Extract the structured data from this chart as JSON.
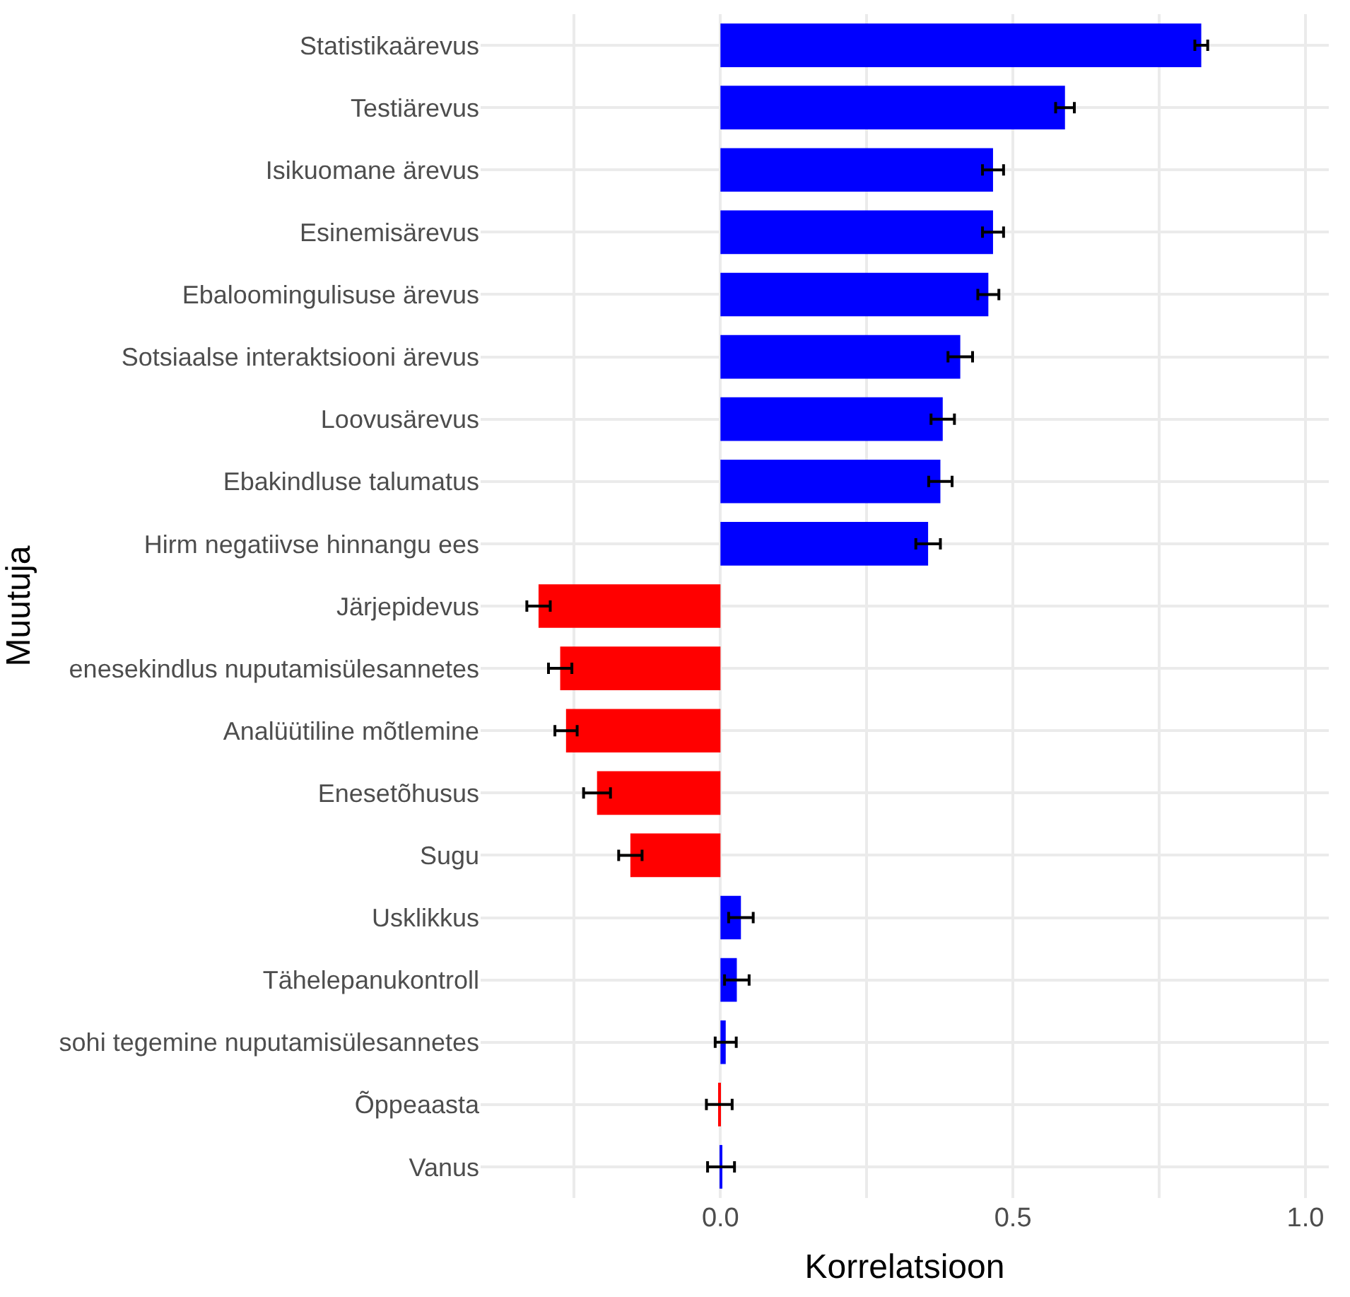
{
  "chart_data": {
    "type": "bar",
    "orientation": "horizontal",
    "xlabel": "Korrelatsioon",
    "ylabel": "Muutuja",
    "categories": [
      "Statistikaärevus",
      "Testiärevus",
      "Isikuomane ärevus",
      "Esinemisärevus",
      "Ebaloomingulisuse ärevus",
      "Sotsiaalse interaktsiooni ärevus",
      "Loovusärevus",
      "Ebakindluse talumatus",
      "Hirm negatiivse hinnangu ees",
      "Järjepidevus",
      "enesekindlus nuputamisülesannetes",
      "Analüütiline mõtlemine",
      "Enesetõhusus",
      "Sugu",
      "Usklikkus",
      "Tähelepanukontroll",
      "sohi tegemine nuputamisülesannetes",
      "Õppeaasta",
      "Vanus"
    ],
    "values": [
      0.822,
      0.589,
      0.466,
      0.466,
      0.458,
      0.41,
      0.38,
      0.376,
      0.355,
      -0.311,
      -0.274,
      -0.264,
      -0.211,
      -0.154,
      0.035,
      0.028,
      0.009,
      -0.002,
      0.001
    ],
    "errors": [
      0.011,
      0.016,
      0.018,
      0.018,
      0.018,
      0.021,
      0.02,
      0.02,
      0.021,
      0.02,
      0.02,
      0.019,
      0.023,
      0.02,
      0.021,
      0.021,
      0.018,
      0.022,
      0.023
    ],
    "colors": [
      "#0000ff",
      "#0000ff",
      "#0000ff",
      "#0000ff",
      "#0000ff",
      "#0000ff",
      "#0000ff",
      "#0000ff",
      "#0000ff",
      "#ff0000",
      "#ff0000",
      "#ff0000",
      "#ff0000",
      "#ff0000",
      "#0000ff",
      "#0000ff",
      "#0000ff",
      "#ff0000",
      "#0000ff"
    ],
    "xlim": [
      -0.41,
      1.04
    ],
    "xticks": [
      {
        "value": -0.25,
        "label": null
      },
      {
        "value": 0,
        "label": "0.0"
      },
      {
        "value": 0.25,
        "label": null
      },
      {
        "value": 0.5,
        "label": "0.5"
      },
      {
        "value": 0.75,
        "label": null
      },
      {
        "value": 1,
        "label": "1.0"
      }
    ],
    "grid": true,
    "legend": false
  }
}
